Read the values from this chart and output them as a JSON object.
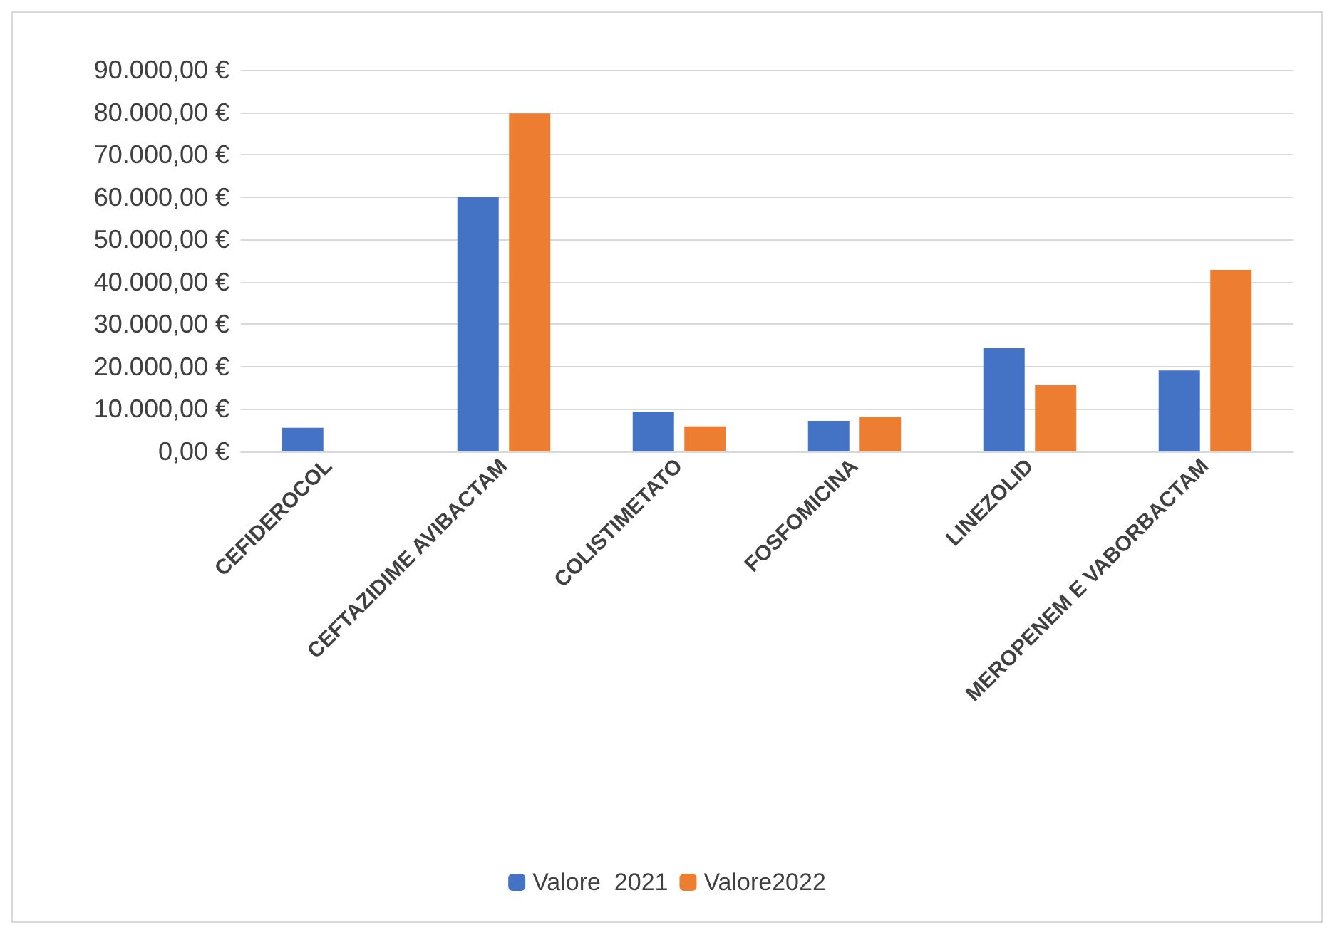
{
  "chart_data": {
    "type": "bar",
    "categories": [
      "CEFIDEROCOL",
      "CEFTAZIDIME AVIBACTAM",
      "COLISTIMETATO",
      "FOSFOMICINA",
      "LINEZOLID",
      "MEROPENEM E VABORBACTAM"
    ],
    "series": [
      {
        "name": "Valore  2021",
        "color": "#4472c4",
        "values": [
          5600,
          60000,
          9400,
          7200,
          24400,
          19100
        ]
      },
      {
        "name": "Valore2022",
        "color": "#ed7d31",
        "values": [
          0,
          79700,
          5900,
          8100,
          15600,
          42800
        ]
      }
    ],
    "ylim": [
      0,
      90000
    ],
    "yticks": [
      {
        "value": 0,
        "label": "0,00 €"
      },
      {
        "value": 10000,
        "label": "10.000,00 €"
      },
      {
        "value": 20000,
        "label": "20.000,00 €"
      },
      {
        "value": 30000,
        "label": "30.000,00 €"
      },
      {
        "value": 40000,
        "label": "40.000,00 €"
      },
      {
        "value": 50000,
        "label": "50.000,00 €"
      },
      {
        "value": 60000,
        "label": "60.000,00 €"
      },
      {
        "value": 70000,
        "label": "70.000,00 €"
      },
      {
        "value": 80000,
        "label": "80.000,00 €"
      },
      {
        "value": 90000,
        "label": "90.000,00 €"
      }
    ],
    "grid": "y",
    "legend": "bottom"
  }
}
